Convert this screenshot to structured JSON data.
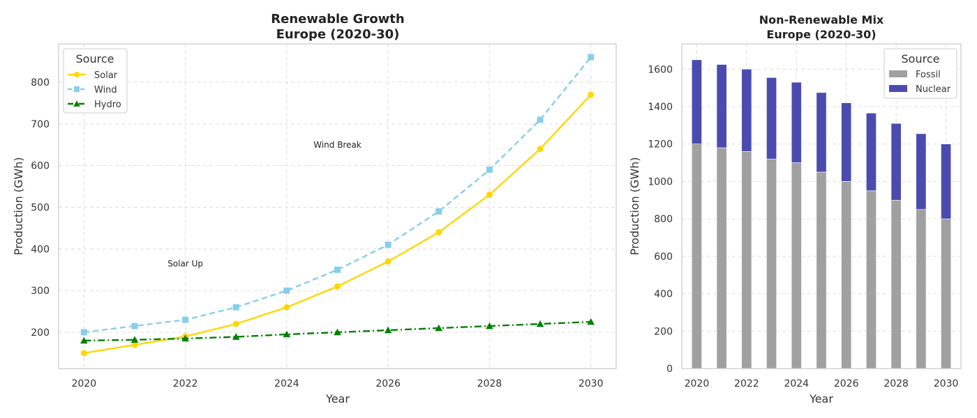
{
  "chart_data": [
    {
      "type": "line",
      "title": "Renewable Growth",
      "subtitle": "Europe (2020-30)",
      "xlabel": "Year",
      "ylabel": "Production (GWh)",
      "x": [
        2020,
        2021,
        2022,
        2023,
        2024,
        2025,
        2026,
        2027,
        2028,
        2029,
        2030
      ],
      "xticks": [
        2020,
        2022,
        2024,
        2026,
        2028,
        2030
      ],
      "yticks": [
        200,
        300,
        400,
        500,
        600,
        700,
        800
      ],
      "xlim": [
        2019.5,
        2030.5
      ],
      "ylim": [
        113,
        892
      ],
      "grid": true,
      "legend": {
        "title": "Source",
        "placement": "top-left"
      },
      "series": [
        {
          "name": "Solar",
          "color": "#FFD700",
          "marker": "circle",
          "linestyle": "solid",
          "values": [
            150,
            170,
            190,
            220,
            260,
            310,
            370,
            440,
            530,
            640,
            770
          ]
        },
        {
          "name": "Wind",
          "color": "#87CEEB",
          "marker": "square",
          "linestyle": "dashed",
          "values": [
            200,
            215,
            230,
            260,
            300,
            350,
            410,
            490,
            590,
            710,
            860
          ]
        },
        {
          "name": "Hydro",
          "color": "#008000",
          "marker": "triangle",
          "linestyle": "dashdot",
          "values": [
            180,
            182,
            185,
            189,
            195,
            200,
            205,
            210,
            215,
            220,
            225
          ]
        }
      ],
      "annotations": [
        {
          "text": "Solar Up",
          "x": 2022,
          "y": 365
        },
        {
          "text": "Wind Break",
          "x": 2025,
          "y": 650
        }
      ]
    },
    {
      "type": "bar",
      "stacked": true,
      "title": "Non-Renewable Mix",
      "subtitle": "Europe (2020-30)",
      "xlabel": "Year",
      "ylabel": "Production (GWh)",
      "categories": [
        2020,
        2021,
        2022,
        2023,
        2024,
        2025,
        2026,
        2027,
        2028,
        2029,
        2030
      ],
      "xticks": [
        2020,
        2022,
        2024,
        2026,
        2028,
        2030
      ],
      "yticks": [
        0,
        200,
        400,
        600,
        800,
        1000,
        1200,
        1400,
        1600
      ],
      "xlim": [
        2019.4,
        2030.6
      ],
      "ylim": [
        0,
        1735
      ],
      "grid": true,
      "legend": {
        "title": "Source",
        "placement": "top-right"
      },
      "series": [
        {
          "name": "Fossil",
          "color": "#A0A0A0",
          "values": [
            1200,
            1180,
            1160,
            1120,
            1100,
            1050,
            1000,
            950,
            900,
            850,
            800
          ]
        },
        {
          "name": "Nuclear",
          "color": "#4B4BAF",
          "values": [
            450,
            445,
            440,
            435,
            430,
            425,
            420,
            415,
            410,
            405,
            400
          ]
        }
      ]
    }
  ]
}
